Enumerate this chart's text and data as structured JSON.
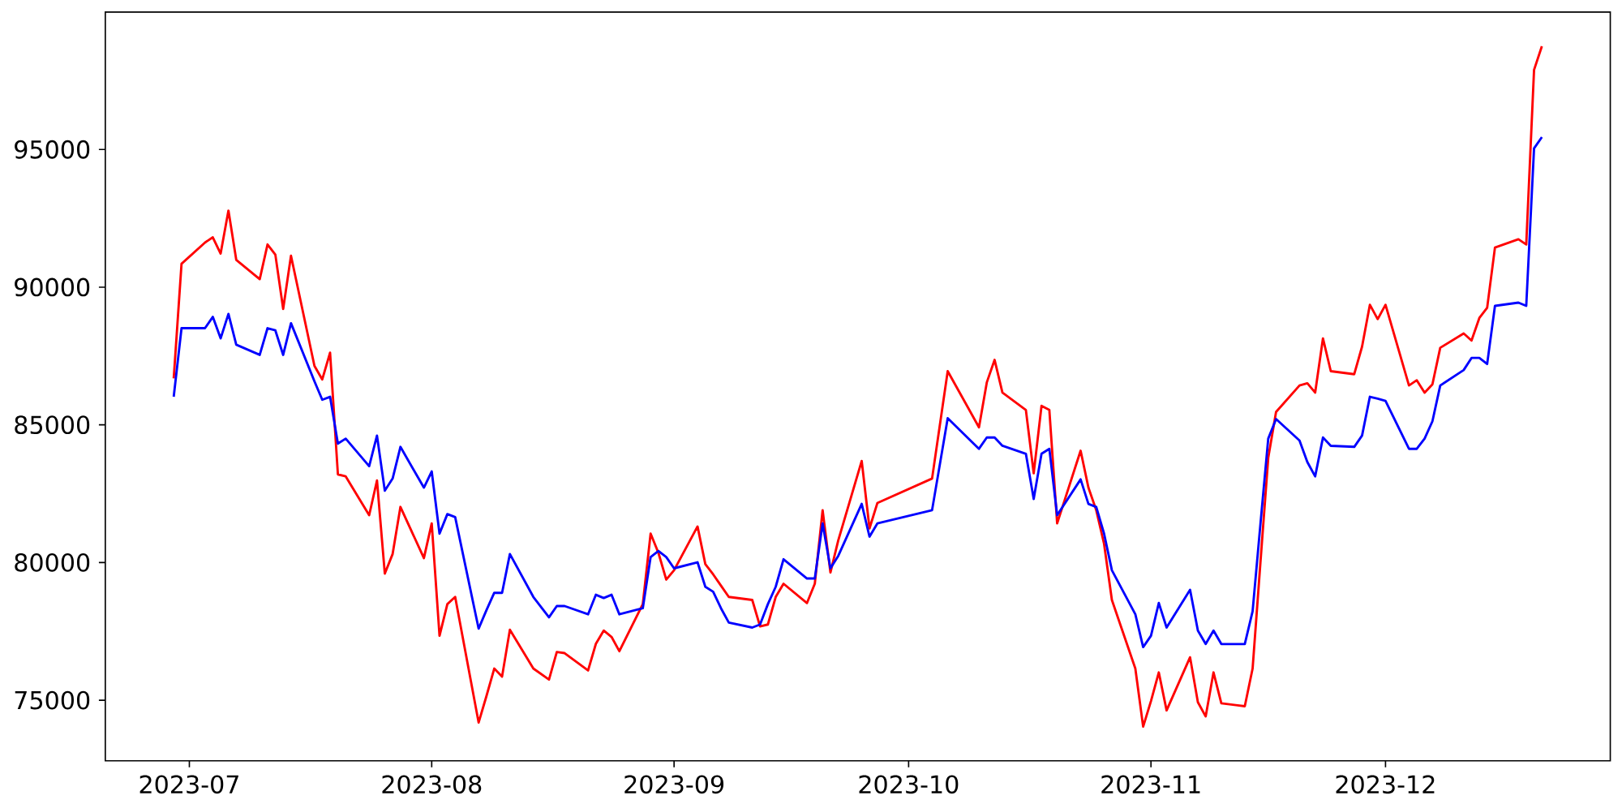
{
  "chart_data": {
    "type": "line",
    "x": [
      "2023-06-29",
      "2023-06-30",
      "2023-07-03",
      "2023-07-04",
      "2023-07-05",
      "2023-07-06",
      "2023-07-07",
      "2023-07-10",
      "2023-07-11",
      "2023-07-12",
      "2023-07-13",
      "2023-07-14",
      "2023-07-17",
      "2023-07-18",
      "2023-07-19",
      "2023-07-20",
      "2023-07-21",
      "2023-07-24",
      "2023-07-25",
      "2023-07-26",
      "2023-07-27",
      "2023-07-28",
      "2023-07-31",
      "2023-08-01",
      "2023-08-02",
      "2023-08-03",
      "2023-08-04",
      "2023-08-07",
      "2023-08-08",
      "2023-08-09",
      "2023-08-10",
      "2023-08-11",
      "2023-08-14",
      "2023-08-16",
      "2023-08-17",
      "2023-08-18",
      "2023-08-21",
      "2023-08-22",
      "2023-08-23",
      "2023-08-24",
      "2023-08-25",
      "2023-08-28",
      "2023-08-29",
      "2023-08-30",
      "2023-08-31",
      "2023-09-01",
      "2023-09-04",
      "2023-09-05",
      "2023-09-06",
      "2023-09-07",
      "2023-09-08",
      "2023-09-11",
      "2023-09-12",
      "2023-09-13",
      "2023-09-14",
      "2023-09-15",
      "2023-09-18",
      "2023-09-19",
      "2023-09-20",
      "2023-09-21",
      "2023-09-22",
      "2023-09-25",
      "2023-09-26",
      "2023-09-27",
      "2023-10-04",
      "2023-10-06",
      "2023-10-10",
      "2023-10-11",
      "2023-10-12",
      "2023-10-13",
      "2023-10-16",
      "2023-10-17",
      "2023-10-18",
      "2023-10-19",
      "2023-10-20",
      "2023-10-23",
      "2023-10-24",
      "2023-10-25",
      "2023-10-26",
      "2023-10-27",
      "2023-10-30",
      "2023-10-31",
      "2023-11-01",
      "2023-11-02",
      "2023-11-03",
      "2023-11-06",
      "2023-11-07",
      "2023-11-08",
      "2023-11-09",
      "2023-11-10",
      "2023-11-13",
      "2023-11-14",
      "2023-11-15",
      "2023-11-16",
      "2023-11-17",
      "2023-11-20",
      "2023-11-21",
      "2023-11-22",
      "2023-11-23",
      "2023-11-24",
      "2023-11-27",
      "2023-11-28",
      "2023-11-29",
      "2023-11-30",
      "2023-12-01",
      "2023-12-04",
      "2023-12-05",
      "2023-12-06",
      "2023-12-07",
      "2023-12-08",
      "2023-12-11",
      "2023-12-12",
      "2023-12-13",
      "2023-12-14",
      "2023-12-15",
      "2023-12-18",
      "2023-12-19",
      "2023-12-20",
      "2023-12-21"
    ],
    "series": [
      {
        "color": "#ff0000",
        "values": [
          86690,
          90850,
          91620,
          91810,
          91220,
          92780,
          90990,
          90290,
          91550,
          91180,
          89210,
          91140,
          87140,
          86650,
          87620,
          83200,
          83130,
          81720,
          82980,
          79600,
          80310,
          82020,
          80160,
          81420,
          77340,
          78490,
          78750,
          74190,
          75150,
          76150,
          75860,
          77560,
          76150,
          75750,
          76750,
          76710,
          76080,
          77050,
          77530,
          77300,
          76780,
          78490,
          81050,
          80350,
          79380,
          79720,
          81310,
          79940,
          79570,
          79160,
          78750,
          78640,
          77680,
          77750,
          78750,
          79230,
          78530,
          79230,
          81900,
          79640,
          80800,
          83690,
          81240,
          82160,
          83050,
          86950,
          84910,
          86540,
          87360,
          86170,
          85540,
          83240,
          85690,
          85540,
          81420,
          84060,
          82720,
          81900,
          80680,
          78640,
          76150,
          74040,
          74970,
          76010,
          74630,
          76560,
          74930,
          74410,
          76010,
          74890,
          74780,
          76150,
          80000,
          83800,
          85470,
          86430,
          86510,
          86170,
          88140,
          86950,
          86840,
          87840,
          89360,
          88840,
          89360,
          86430,
          86620,
          86170,
          86470,
          87800,
          88320,
          88060,
          88880,
          89250,
          91440,
          91740,
          91550,
          97890,
          98750
        ]
      },
      {
        "color": "#0000ff",
        "values": [
          86020,
          88510,
          88510,
          88920,
          88140,
          89030,
          87910,
          87540,
          88510,
          88430,
          87540,
          88690,
          86580,
          85910,
          86020,
          84320,
          84500,
          83500,
          84610,
          82610,
          83050,
          84200,
          82720,
          83310,
          81050,
          81760,
          81650,
          77600,
          78270,
          78900,
          78900,
          80310,
          78750,
          78010,
          78420,
          78420,
          78120,
          78830,
          78710,
          78830,
          78120,
          78340,
          80200,
          80420,
          80200,
          79790,
          80010,
          79120,
          78940,
          78340,
          77820,
          77640,
          77750,
          78490,
          79120,
          80120,
          79420,
          79420,
          81420,
          79790,
          80240,
          82130,
          80940,
          81420,
          81900,
          85240,
          84130,
          84540,
          84540,
          84240,
          83950,
          82310,
          83950,
          84130,
          81720,
          83020,
          82130,
          82020,
          81050,
          79720,
          78120,
          76930,
          77340,
          78530,
          77640,
          79010,
          77530,
          77040,
          77530,
          77040,
          77040,
          78230,
          81390,
          84500,
          85210,
          84430,
          83650,
          83130,
          84540,
          84240,
          84200,
          84610,
          86020,
          85950,
          85870,
          84130,
          84130,
          84500,
          85130,
          86430,
          86990,
          87430,
          87430,
          87210,
          89320,
          89440,
          89320,
          95040,
          95450
        ]
      }
    ],
    "xlim": [
      "2023-06-20T06:00",
      "2023-12-29T18:00"
    ],
    "ylim": [
      72800,
      99990
    ],
    "xticks": [
      {
        "value": "2023-07-01",
        "label": "2023-07"
      },
      {
        "value": "2023-08-01",
        "label": "2023-08"
      },
      {
        "value": "2023-09-01",
        "label": "2023-09"
      },
      {
        "value": "2023-10-01",
        "label": "2023-10"
      },
      {
        "value": "2023-11-01",
        "label": "2023-11"
      },
      {
        "value": "2023-12-01",
        "label": "2023-12"
      }
    ],
    "yticks": [
      75000,
      80000,
      85000,
      90000,
      95000
    ]
  }
}
